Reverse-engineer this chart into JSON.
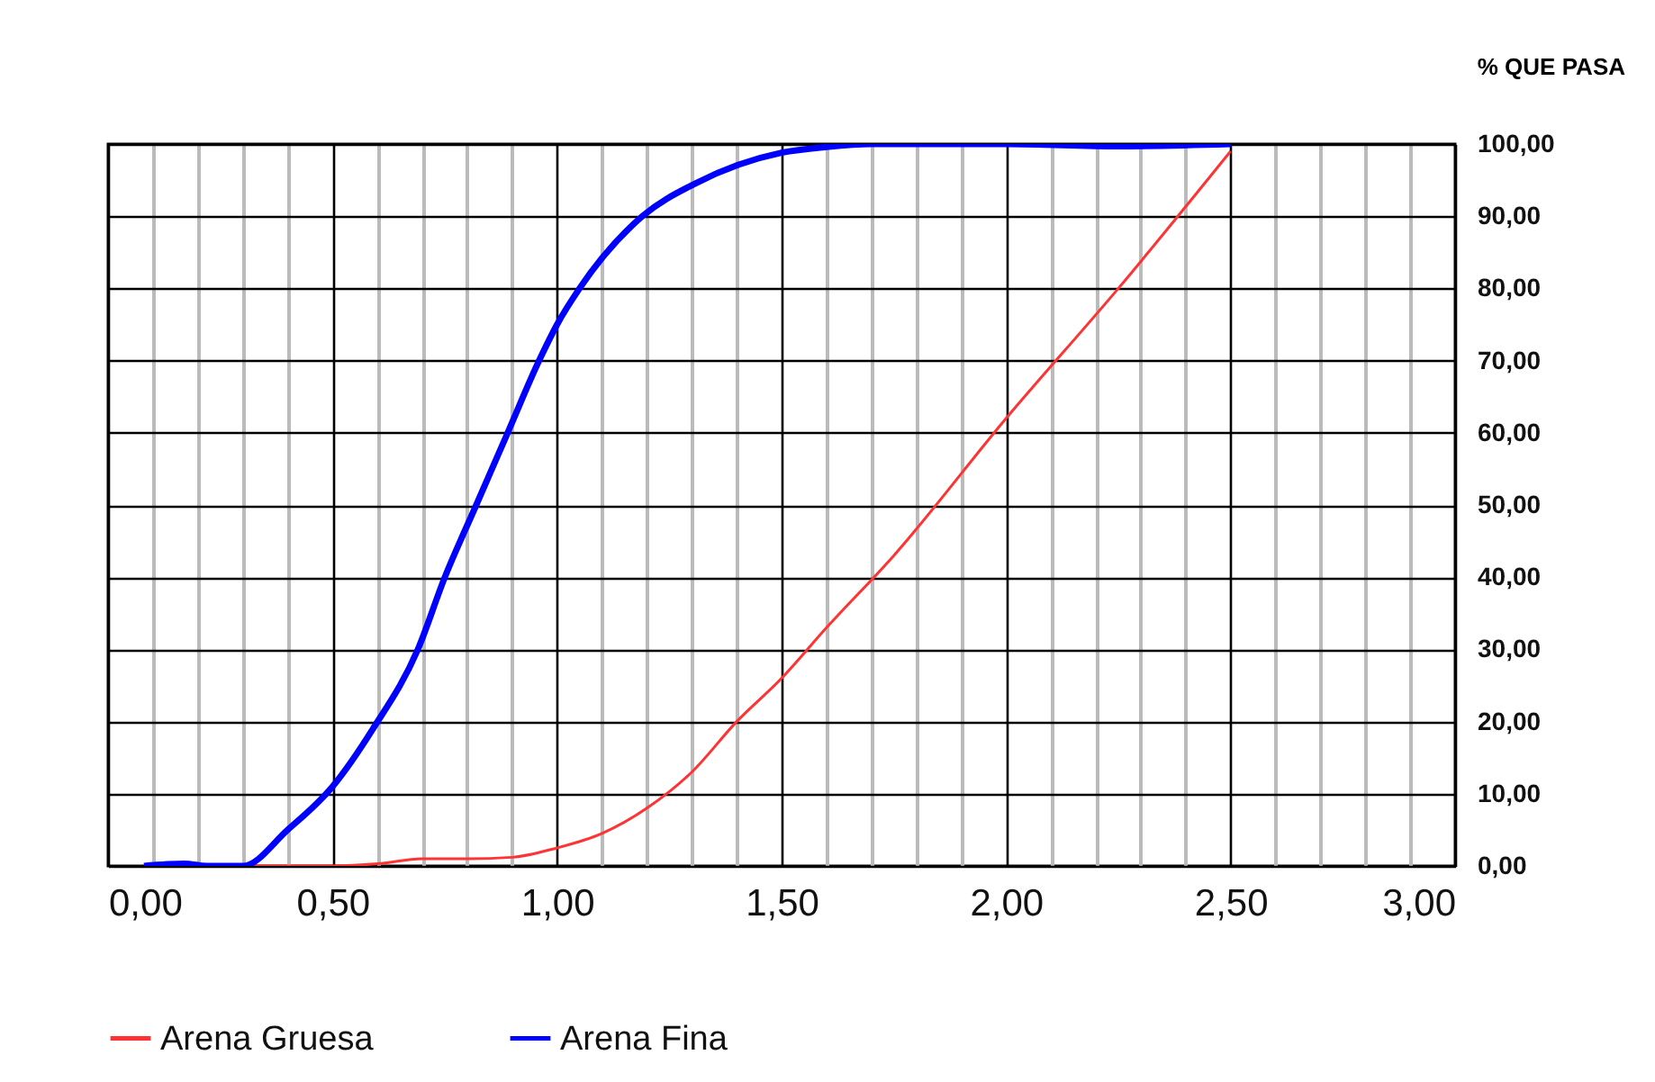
{
  "chart_data": {
    "type": "line",
    "ylabel": "% QUE PASA",
    "xlim": [
      0,
      3
    ],
    "ylim": [
      0,
      100
    ],
    "xticks": [
      {
        "value": 0,
        "label": "0,00"
      },
      {
        "value": 0.1,
        "label": null
      },
      {
        "value": 0.2,
        "label": null
      },
      {
        "value": 0.3,
        "label": null
      },
      {
        "value": 0.4,
        "label": null
      },
      {
        "value": 0.5,
        "label": "0,50"
      },
      {
        "value": 0.6,
        "label": null
      },
      {
        "value": 0.7,
        "label": null
      },
      {
        "value": 0.8,
        "label": null
      },
      {
        "value": 0.9,
        "label": null
      },
      {
        "value": 1,
        "label": "1,00"
      },
      {
        "value": 1.1,
        "label": null
      },
      {
        "value": 1.2,
        "label": null
      },
      {
        "value": 1.3,
        "label": null
      },
      {
        "value": 1.4,
        "label": null
      },
      {
        "value": 1.5,
        "label": "1,50"
      },
      {
        "value": 1.6,
        "label": null
      },
      {
        "value": 1.7,
        "label": null
      },
      {
        "value": 1.8,
        "label": null
      },
      {
        "value": 1.9,
        "label": null
      },
      {
        "value": 2,
        "label": "2,00"
      },
      {
        "value": 2.1,
        "label": null
      },
      {
        "value": 2.2,
        "label": null
      },
      {
        "value": 2.3,
        "label": null
      },
      {
        "value": 2.4,
        "label": null
      },
      {
        "value": 2.5,
        "label": "2,50"
      },
      {
        "value": 2.6,
        "label": null
      },
      {
        "value": 2.7,
        "label": null
      },
      {
        "value": 2.8,
        "label": null
      },
      {
        "value": 2.9,
        "label": null
      },
      {
        "value": 3,
        "label": "3,00"
      }
    ],
    "yticks": [
      {
        "value": 0,
        "label": "0,00"
      },
      {
        "value": 10,
        "label": "10,00"
      },
      {
        "value": 20,
        "label": "20,00"
      },
      {
        "value": 30,
        "label": "30,00"
      },
      {
        "value": 40,
        "label": "40,00"
      },
      {
        "value": 50,
        "label": "50,00"
      },
      {
        "value": 60,
        "label": "60,00"
      },
      {
        "value": 70,
        "label": "70,00"
      },
      {
        "value": 80,
        "label": "80,00"
      },
      {
        "value": 90,
        "label": "90,00"
      },
      {
        "value": 100,
        "label": "100,00"
      }
    ],
    "grid": true,
    "legend": "bottom",
    "line_style": "solid",
    "marker": "none",
    "series": [
      {
        "name": "Arena Gruesa",
        "color": "#ff3333",
        "x": [
          0.2,
          0.5,
          0.6,
          0.7,
          0.8,
          0.9,
          1.0,
          1.1,
          1.2,
          1.3,
          1.4,
          1.5,
          1.6,
          1.75,
          2.0,
          2.25,
          2.5
        ],
        "values": [
          0,
          0,
          0.3,
          1,
          1,
          1.2,
          2.5,
          4.5,
          8,
          13,
          20,
          26,
          33,
          43,
          62,
          80,
          99
        ]
      },
      {
        "name": "Arena Fina",
        "color": "#0000ff",
        "x": [
          0.08,
          0.17,
          0.22,
          0.3,
          0.4,
          0.5,
          0.59,
          0.69,
          0.75,
          0.82,
          0.89,
          0.96,
          1.0,
          1.05,
          1.19,
          1.31,
          1.5,
          1.6,
          1.7,
          2.0,
          2.25,
          2.5
        ],
        "values": [
          0,
          0.3,
          0,
          0,
          5,
          11,
          19,
          30,
          40,
          50,
          60,
          70,
          75,
          80,
          90,
          94.6,
          98.8,
          99.6,
          100,
          100,
          99.7,
          100
        ]
      }
    ]
  }
}
